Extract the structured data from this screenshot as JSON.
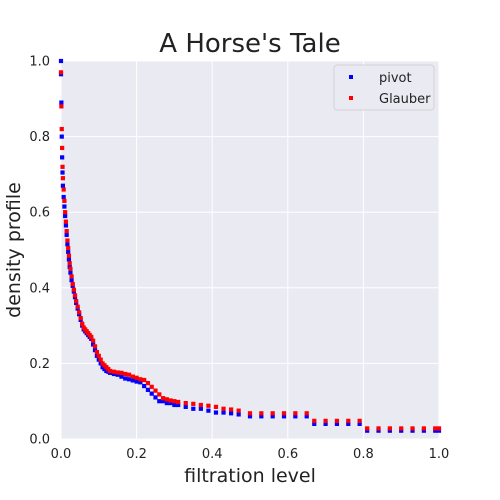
{
  "chart_data": {
    "type": "scatter",
    "title": "A Horse's Tale",
    "xlabel": "filtration level",
    "ylabel": "density profile",
    "xlim": [
      0,
      1
    ],
    "ylim": [
      0,
      1
    ],
    "xticks": [
      "0.0",
      "0.2",
      "0.4",
      "0.6",
      "0.8",
      "1.0"
    ],
    "yticks": [
      "0.0",
      "0.2",
      "0.4",
      "0.6",
      "0.8",
      "1.0"
    ],
    "grid": true,
    "legend_position": "top-right",
    "colors": {
      "background": "#eaeaf2",
      "grid": "#ffffff",
      "pivot": "#0000ff",
      "glauber": "#ff0000"
    },
    "series": [
      {
        "name": "pivot",
        "color": "#0000ff",
        "x": [
          0.0,
          0.0,
          0.001,
          0.002,
          0.003,
          0.004,
          0.005,
          0.007,
          0.009,
          0.011,
          0.013,
          0.015,
          0.017,
          0.019,
          0.021,
          0.023,
          0.025,
          0.028,
          0.031,
          0.034,
          0.037,
          0.04,
          0.044,
          0.048,
          0.052,
          0.056,
          0.06,
          0.064,
          0.068,
          0.072,
          0.076,
          0.08,
          0.085,
          0.09,
          0.095,
          0.1,
          0.105,
          0.11,
          0.115,
          0.12,
          0.125,
          0.13,
          0.14,
          0.15,
          0.16,
          0.17,
          0.18,
          0.19,
          0.2,
          0.21,
          0.22,
          0.23,
          0.24,
          0.25,
          0.26,
          0.27,
          0.28,
          0.29,
          0.3,
          0.31,
          0.33,
          0.35,
          0.37,
          0.39,
          0.41,
          0.43,
          0.45,
          0.47,
          0.5,
          0.53,
          0.56,
          0.59,
          0.62,
          0.65,
          0.67,
          0.7,
          0.73,
          0.76,
          0.79,
          0.81,
          0.84,
          0.87,
          0.9,
          0.93,
          0.96,
          0.99,
          1.0
        ],
        "y": [
          1.0,
          0.965,
          0.89,
          0.8,
          0.745,
          0.705,
          0.67,
          0.64,
          0.615,
          0.59,
          0.565,
          0.54,
          0.515,
          0.495,
          0.475,
          0.455,
          0.44,
          0.42,
          0.405,
          0.39,
          0.375,
          0.36,
          0.345,
          0.33,
          0.315,
          0.3,
          0.29,
          0.285,
          0.28,
          0.275,
          0.27,
          0.265,
          0.25,
          0.235,
          0.22,
          0.21,
          0.2,
          0.19,
          0.185,
          0.18,
          0.178,
          0.175,
          0.172,
          0.17,
          0.165,
          0.16,
          0.158,
          0.155,
          0.152,
          0.15,
          0.14,
          0.13,
          0.12,
          0.11,
          0.1,
          0.1,
          0.095,
          0.095,
          0.09,
          0.09,
          0.085,
          0.08,
          0.08,
          0.075,
          0.07,
          0.07,
          0.068,
          0.065,
          0.06,
          0.06,
          0.06,
          0.06,
          0.06,
          0.06,
          0.04,
          0.04,
          0.04,
          0.04,
          0.04,
          0.022,
          0.022,
          0.022,
          0.022,
          0.022,
          0.022,
          0.022,
          0.022
        ]
      },
      {
        "name": "Glauber",
        "color": "#ff0000",
        "x": [
          0.0,
          0.001,
          0.002,
          0.003,
          0.004,
          0.005,
          0.007,
          0.009,
          0.011,
          0.013,
          0.015,
          0.017,
          0.019,
          0.021,
          0.023,
          0.025,
          0.028,
          0.031,
          0.034,
          0.037,
          0.04,
          0.044,
          0.048,
          0.052,
          0.056,
          0.06,
          0.064,
          0.068,
          0.072,
          0.076,
          0.08,
          0.085,
          0.09,
          0.095,
          0.1,
          0.105,
          0.11,
          0.115,
          0.12,
          0.125,
          0.13,
          0.14,
          0.15,
          0.16,
          0.17,
          0.18,
          0.19,
          0.2,
          0.21,
          0.22,
          0.23,
          0.24,
          0.25,
          0.26,
          0.27,
          0.28,
          0.29,
          0.3,
          0.31,
          0.33,
          0.35,
          0.37,
          0.39,
          0.41,
          0.43,
          0.45,
          0.47,
          0.5,
          0.53,
          0.56,
          0.59,
          0.62,
          0.65,
          0.67,
          0.7,
          0.73,
          0.76,
          0.79,
          0.81,
          0.84,
          0.87,
          0.9,
          0.93,
          0.96,
          0.99,
          1.0
        ],
        "y": [
          0.97,
          0.88,
          0.82,
          0.77,
          0.72,
          0.69,
          0.66,
          0.63,
          0.6,
          0.575,
          0.55,
          0.525,
          0.505,
          0.485,
          0.465,
          0.45,
          0.43,
          0.41,
          0.395,
          0.38,
          0.365,
          0.35,
          0.335,
          0.32,
          0.305,
          0.295,
          0.29,
          0.285,
          0.28,
          0.275,
          0.27,
          0.26,
          0.245,
          0.23,
          0.22,
          0.21,
          0.2,
          0.195,
          0.19,
          0.185,
          0.18,
          0.178,
          0.176,
          0.175,
          0.172,
          0.17,
          0.165,
          0.162,
          0.158,
          0.156,
          0.148,
          0.138,
          0.128,
          0.118,
          0.108,
          0.105,
          0.102,
          0.1,
          0.098,
          0.095,
          0.093,
          0.09,
          0.088,
          0.085,
          0.08,
          0.078,
          0.075,
          0.068,
          0.068,
          0.068,
          0.068,
          0.068,
          0.068,
          0.048,
          0.048,
          0.048,
          0.048,
          0.048,
          0.028,
          0.028,
          0.028,
          0.028,
          0.028,
          0.028,
          0.028,
          0.028
        ]
      }
    ]
  }
}
